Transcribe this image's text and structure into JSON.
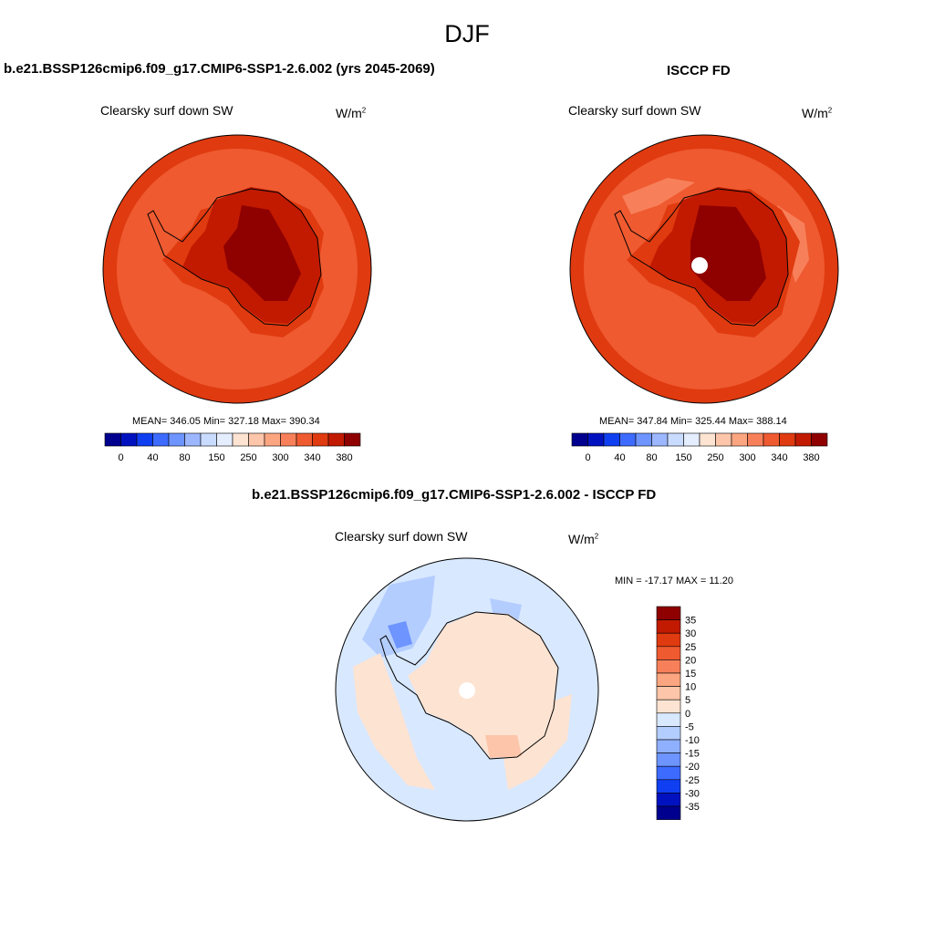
{
  "season": "DJF",
  "panel_left": {
    "title": "b.e21.BSSP126cmip6.f09_g17.CMIP6-SSP1-2.6.002 (yrs 2045-2069)",
    "variable": "Clearsky surf down SW",
    "units": "W/m",
    "units_sup": "2",
    "stats": "MEAN= 346.05  Min= 327.18  Max= 390.34"
  },
  "panel_right": {
    "title": "ISCCP FD",
    "variable": "Clearsky surf down SW",
    "units": "W/m",
    "units_sup": "2",
    "stats": "MEAN= 347.84  Min= 325.44  Max= 388.14"
  },
  "panel_diff": {
    "title": "b.e21.BSSP126cmip6.f09_g17.CMIP6-SSP1-2.6.002 - ISCCP FD",
    "variable": "Clearsky surf down SW",
    "units": "W/m",
    "units_sup": "2",
    "stats": "MIN = -17.17 MAX =  11.20"
  },
  "colors": {
    "abs_scale": [
      "#00008f",
      "#0012c0",
      "#0f3ff0",
      "#3d6bff",
      "#6d94ff",
      "#9cb7ff",
      "#c9dbff",
      "#e4eeff",
      "#fde3d2",
      "#fdc5a9",
      "#fca681",
      "#f7805a",
      "#ef5a30",
      "#e03a10",
      "#c11a00",
      "#8f0000"
    ],
    "diff_scale": [
      "#8f0000",
      "#c11a00",
      "#e03a10",
      "#ef5a30",
      "#f7805a",
      "#fca681",
      "#fdc5a9",
      "#fde3d2",
      "#d8e8ff",
      "#b4cdff",
      "#8fafff",
      "#6d94ff",
      "#3d6bff",
      "#0f3ff0",
      "#0012c0",
      "#00008f"
    ]
  },
  "abs_colorbar_labels": [
    "0",
    "40",
    "80",
    "150",
    "250",
    "300",
    "340",
    "380"
  ],
  "diff_colorbar_labels": [
    "35",
    "30",
    "25",
    "20",
    "15",
    "10",
    "5",
    "0",
    "-5",
    "-10",
    "-15",
    "-20",
    "-25",
    "-30",
    "-35"
  ]
}
